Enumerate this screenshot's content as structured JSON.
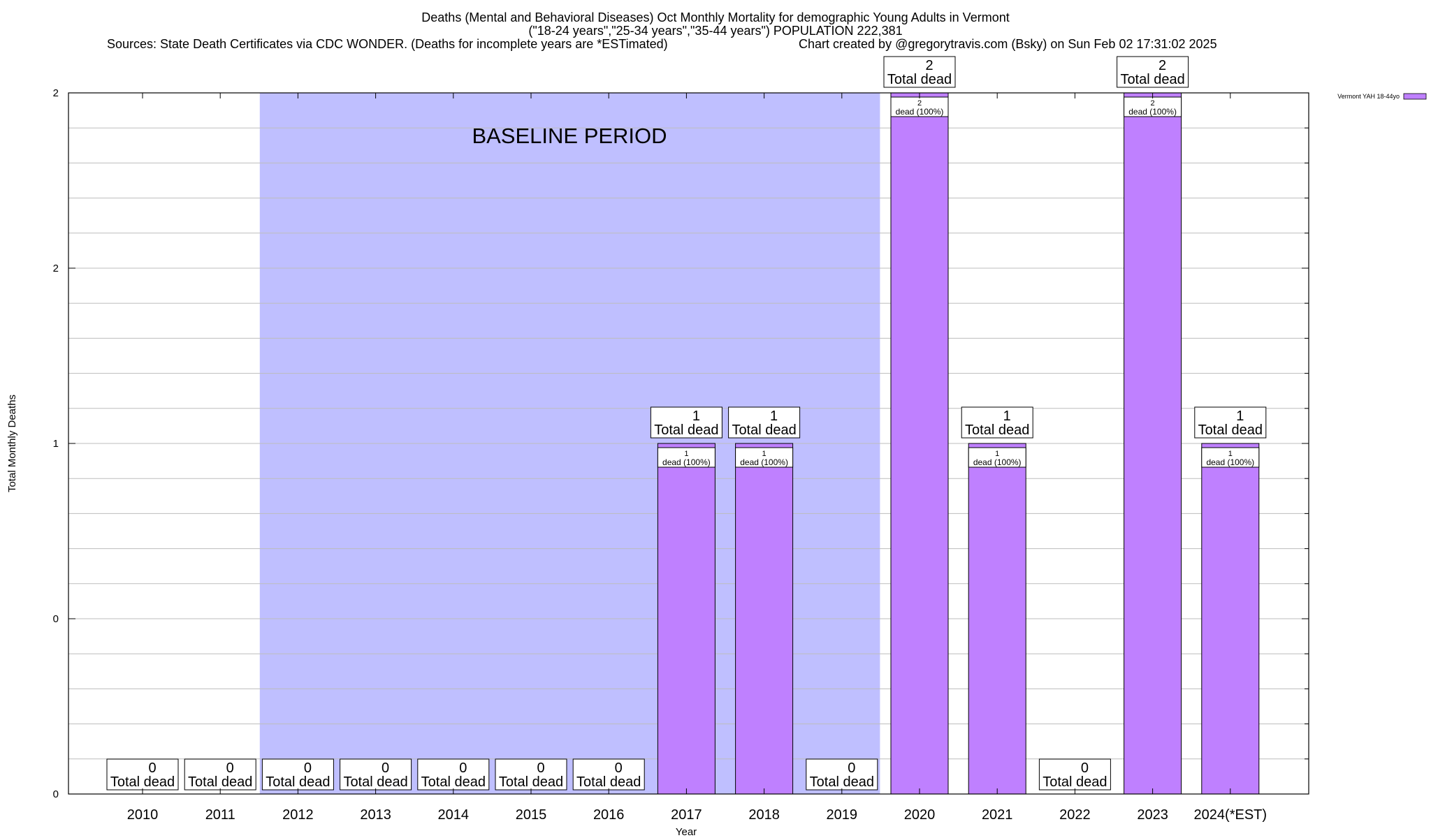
{
  "chart_data": {
    "type": "bar",
    "title": "Deaths (Mental and Behavioral Diseases) Oct Monthly Mortality for demographic Young Adults in Vermont",
    "subtitle": "(\"18-24 years\",\"25-34 years\",\"35-44 years\") POPULATION 222,381",
    "source": "Sources: State Death Certificates via CDC WONDER. (Deaths for incomplete years are *ESTimated)",
    "credit": "Chart created by @gregorytravis.com (Bsky) on Sun Feb 02 17:31:02 2025",
    "xlabel": "Year",
    "ylabel": "Total Monthly Deaths",
    "ylim": [
      0,
      2
    ],
    "y_tick_labels": [
      "0",
      "0",
      "1",
      "2",
      "2"
    ],
    "grid": true,
    "legend": {
      "position": "top-right",
      "entries": [
        "Vermont YAH 18-44yo"
      ]
    },
    "bar_color": "#bf80ff",
    "baseline_band": {
      "label": "BASELINE PERIOD",
      "from": "2012",
      "to": "2019",
      "color": "#bfbfff"
    },
    "categories": [
      "2010",
      "2011",
      "2012",
      "2013",
      "2014",
      "2015",
      "2016",
      "2017",
      "2018",
      "2019",
      "2020",
      "2021",
      "2022",
      "2023",
      "2024(*EST)"
    ],
    "series": [
      {
        "name": "Vermont YAH 18-44yo",
        "values": [
          0,
          0,
          0,
          0,
          0,
          0,
          0,
          1,
          1,
          0,
          2,
          1,
          0,
          2,
          1
        ]
      }
    ],
    "total_label_text": "Total dead",
    "bar_label_text": "dead (100%)"
  }
}
